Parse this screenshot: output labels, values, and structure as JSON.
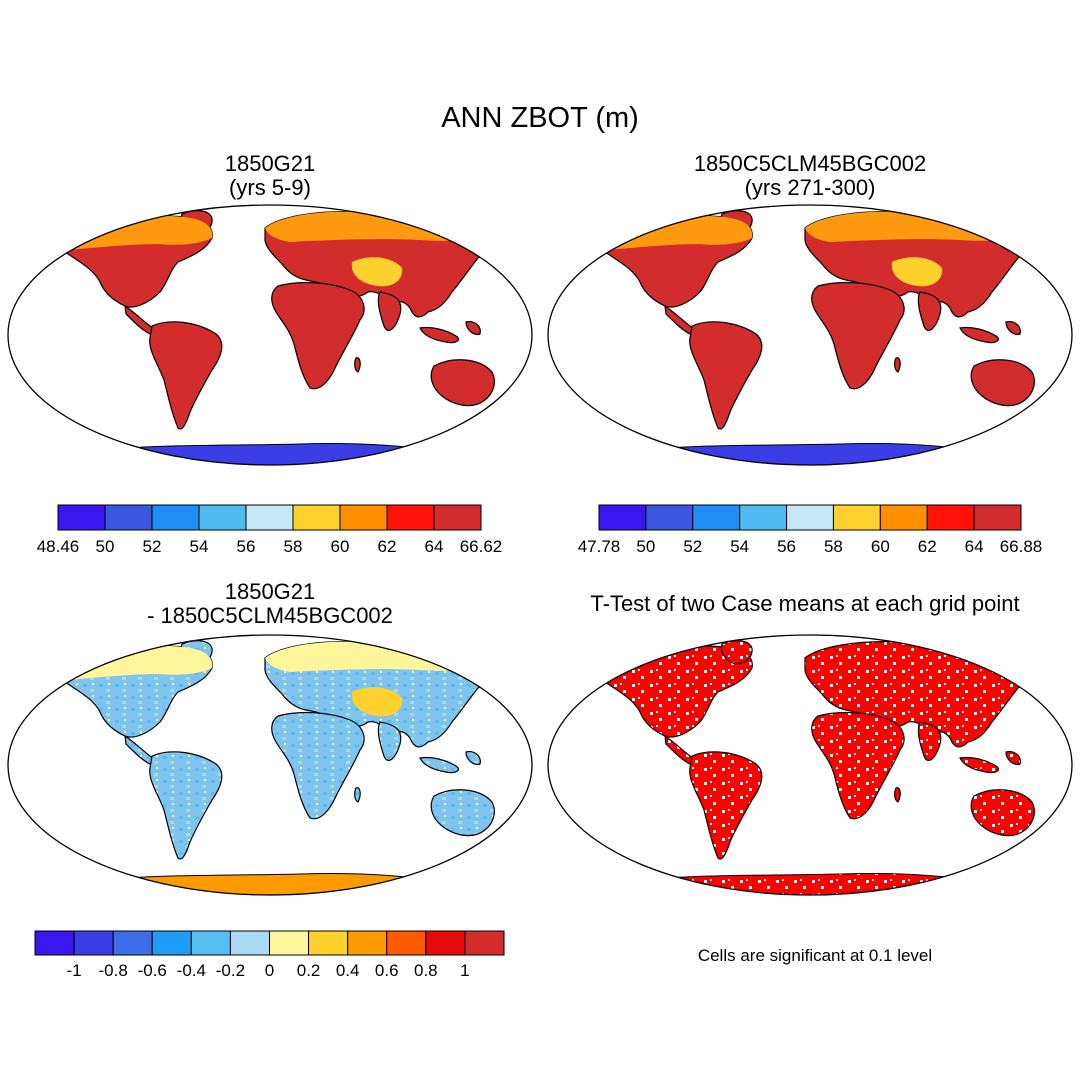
{
  "title": "ANN ZBOT (m)",
  "panels": [
    {
      "title_line1": "1850G21",
      "title_line2": "(yrs 5-9)",
      "colorbar": {
        "colors": [
          "#3a17f0",
          "#3b57e0",
          "#1f8ef4",
          "#4fbaf0",
          "#c6e8f6",
          "#ffd12d",
          "#ff8e00",
          "#ff1208",
          "#d32c2c"
        ],
        "labels": [
          "48.46",
          "50",
          "52",
          "54",
          "56",
          "58",
          "60",
          "62",
          "64",
          "66.62"
        ]
      }
    },
    {
      "title_line1": "1850C5CLM45BGC002",
      "title_line2": "(yrs 271-300)",
      "colorbar": {
        "colors": [
          "#3a17f0",
          "#3b57e0",
          "#1f8ef4",
          "#4fbaf0",
          "#c6e8f6",
          "#ffd12d",
          "#ff8e00",
          "#ff1208",
          "#d32c2c"
        ],
        "labels": [
          "47.78",
          "50",
          "52",
          "54",
          "56",
          "58",
          "60",
          "62",
          "64",
          "66.88"
        ]
      }
    },
    {
      "title_line1": "1850G21",
      "title_line2": "- 1850C5CLM45BGC002",
      "colorbar": {
        "colors": [
          "#3a17f0",
          "#3b3ee6",
          "#3b6ee8",
          "#1f9cf5",
          "#56bef2",
          "#a9daf4",
          "#fff59a",
          "#ffd12d",
          "#ff9a00",
          "#ff5a00",
          "#e60b0b",
          "#d32c2c"
        ],
        "labels": [
          "-1",
          "-0.8",
          "-0.6",
          "-0.4",
          "-0.2",
          "0",
          "0.2",
          "0.4",
          "0.6",
          "0.8",
          "1"
        ]
      }
    },
    {
      "title_line1": "T-Test of two Case means at each grid point",
      "note": "Cells are significant at 0.1 level"
    }
  ]
}
